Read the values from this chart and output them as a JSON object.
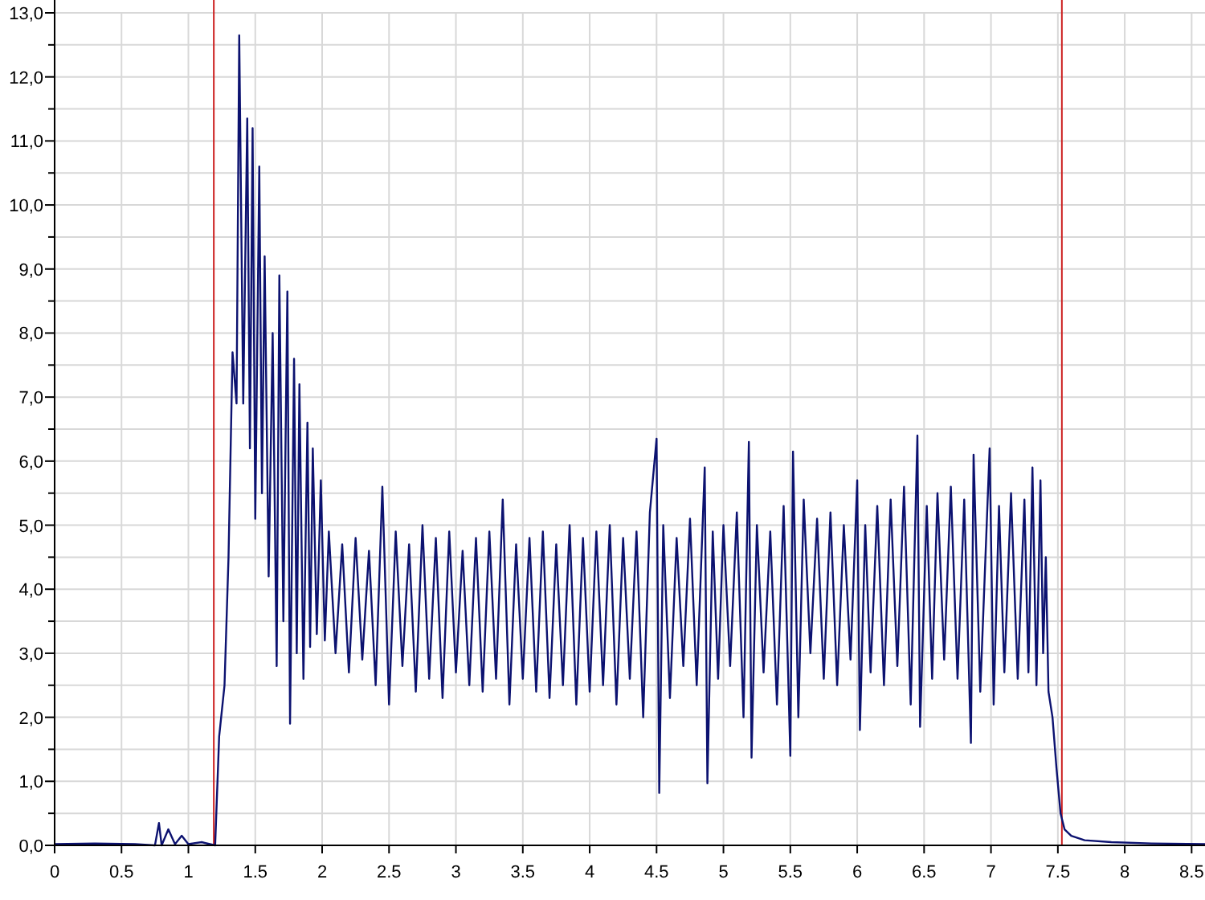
{
  "chart_data": {
    "type": "line",
    "xlim": [
      0,
      8.6
    ],
    "ylim": [
      0,
      13
    ],
    "xticks": [
      0,
      0.5,
      1,
      1.5,
      2,
      2.5,
      3,
      3.5,
      4,
      4.5,
      5,
      5.5,
      6,
      6.5,
      7,
      7.5,
      8,
      8.5
    ],
    "yticks": [
      {
        "value": 0,
        "label": "0,0"
      },
      {
        "value": 0.5,
        "label": null
      },
      {
        "value": 1,
        "label": "1,0"
      },
      {
        "value": 1.5,
        "label": null
      },
      {
        "value": 2,
        "label": "2,0"
      },
      {
        "value": 2.5,
        "label": null
      },
      {
        "value": 3,
        "label": "3,0"
      },
      {
        "value": 3.5,
        "label": null
      },
      {
        "value": 4,
        "label": "4,0"
      },
      {
        "value": 4.5,
        "label": null
      },
      {
        "value": 5,
        "label": "5,0"
      },
      {
        "value": 5.5,
        "label": null
      },
      {
        "value": 6,
        "label": "6,0"
      },
      {
        "value": 6.5,
        "label": null
      },
      {
        "value": 7,
        "label": "7,0"
      },
      {
        "value": 7.5,
        "label": null
      },
      {
        "value": 8,
        "label": "8,0"
      },
      {
        "value": 8.5,
        "label": null
      },
      {
        "value": 9,
        "label": "9,0"
      },
      {
        "value": 9.5,
        "label": null
      },
      {
        "value": 10,
        "label": "10,0"
      },
      {
        "value": 10.5,
        "label": null
      },
      {
        "value": 11,
        "label": "11,0"
      },
      {
        "value": 11.5,
        "label": null
      },
      {
        "value": 12,
        "label": "12,0"
      },
      {
        "value": 12.5,
        "label": null
      },
      {
        "value": 13,
        "label": "13,0"
      }
    ],
    "grid": true,
    "ref_lines": [
      {
        "axis": "x",
        "value": 1.19,
        "color": "#cc2020"
      },
      {
        "axis": "x",
        "value": 7.53,
        "color": "#cc2020"
      }
    ],
    "series": [
      {
        "color": "#0c1270",
        "x": [
          0,
          0.3,
          0.6,
          0.75,
          0.78,
          0.8,
          0.85,
          0.9,
          0.95,
          1.0,
          1.1,
          1.2,
          1.23,
          1.27,
          1.3,
          1.33,
          1.36,
          1.38,
          1.41,
          1.44,
          1.46,
          1.48,
          1.5,
          1.53,
          1.55,
          1.57,
          1.6,
          1.63,
          1.66,
          1.68,
          1.71,
          1.74,
          1.76,
          1.79,
          1.81,
          1.83,
          1.86,
          1.89,
          1.91,
          1.93,
          1.96,
          1.99,
          2.02,
          2.05,
          2.1,
          2.15,
          2.2,
          2.25,
          2.3,
          2.35,
          2.4,
          2.45,
          2.5,
          2.55,
          2.6,
          2.65,
          2.7,
          2.75,
          2.8,
          2.85,
          2.9,
          2.95,
          3.0,
          3.05,
          3.1,
          3.15,
          3.2,
          3.25,
          3.3,
          3.35,
          3.4,
          3.45,
          3.5,
          3.55,
          3.6,
          3.65,
          3.7,
          3.75,
          3.8,
          3.85,
          3.9,
          3.95,
          4.0,
          4.05,
          4.1,
          4.15,
          4.2,
          4.25,
          4.3,
          4.35,
          4.4,
          4.45,
          4.5,
          4.52,
          4.55,
          4.6,
          4.65,
          4.7,
          4.75,
          4.8,
          4.86,
          4.88,
          4.92,
          4.96,
          5.0,
          5.05,
          5.1,
          5.15,
          5.19,
          5.21,
          5.25,
          5.3,
          5.35,
          5.4,
          5.45,
          5.5,
          5.52,
          5.56,
          5.6,
          5.65,
          5.7,
          5.75,
          5.8,
          5.85,
          5.9,
          5.95,
          6.0,
          6.02,
          6.06,
          6.1,
          6.15,
          6.2,
          6.25,
          6.3,
          6.35,
          6.4,
          6.45,
          6.47,
          6.52,
          6.56,
          6.6,
          6.65,
          6.7,
          6.75,
          6.8,
          6.85,
          6.87,
          6.92,
          6.99,
          7.02,
          7.06,
          7.1,
          7.15,
          7.2,
          7.25,
          7.28,
          7.31,
          7.34,
          7.37,
          7.39,
          7.41,
          7.43,
          7.46,
          7.49,
          7.52,
          7.55,
          7.6,
          7.7,
          7.9,
          8.2,
          8.6
        ],
        "values": [
          0.02,
          0.03,
          0.02,
          0.0,
          0.35,
          0.0,
          0.25,
          0.02,
          0.15,
          0.02,
          0.05,
          0.0,
          1.7,
          2.5,
          4.5,
          7.7,
          6.9,
          12.65,
          6.9,
          11.35,
          6.2,
          11.2,
          5.1,
          10.6,
          5.5,
          9.2,
          4.2,
          8.0,
          2.8,
          8.9,
          3.5,
          8.65,
          1.9,
          7.6,
          3.0,
          7.2,
          2.6,
          6.6,
          3.1,
          6.2,
          3.3,
          5.7,
          3.2,
          4.9,
          3.0,
          4.7,
          2.7,
          4.8,
          2.9,
          4.6,
          2.5,
          5.6,
          2.2,
          4.9,
          2.8,
          4.7,
          2.4,
          5.0,
          2.6,
          4.8,
          2.3,
          4.9,
          2.7,
          4.6,
          2.5,
          4.8,
          2.4,
          4.9,
          2.6,
          5.4,
          2.2,
          4.7,
          2.6,
          4.8,
          2.4,
          4.9,
          2.3,
          4.7,
          2.5,
          5.0,
          2.2,
          4.8,
          2.4,
          4.9,
          2.5,
          5.0,
          2.2,
          4.8,
          2.6,
          4.9,
          2.0,
          5.2,
          6.35,
          0.82,
          5.0,
          2.3,
          4.8,
          2.8,
          5.1,
          2.5,
          5.9,
          0.97,
          4.9,
          2.6,
          5.0,
          2.8,
          5.2,
          2.0,
          6.3,
          1.37,
          5.0,
          2.7,
          4.9,
          2.2,
          5.3,
          1.4,
          6.15,
          2.0,
          5.4,
          3.0,
          5.1,
          2.6,
          5.2,
          2.5,
          5.0,
          2.9,
          5.7,
          1.8,
          5.0,
          2.7,
          5.3,
          2.5,
          5.4,
          2.8,
          5.6,
          2.2,
          6.4,
          1.85,
          5.3,
          2.6,
          5.5,
          2.9,
          5.6,
          2.6,
          5.4,
          1.6,
          6.1,
          2.4,
          6.2,
          2.2,
          5.3,
          2.7,
          5.5,
          2.6,
          5.4,
          2.7,
          5.9,
          2.5,
          5.7,
          3.0,
          4.5,
          2.4,
          2.0,
          1.2,
          0.5,
          0.25,
          0.15,
          0.08,
          0.05,
          0.03,
          0.02
        ]
      }
    ]
  }
}
